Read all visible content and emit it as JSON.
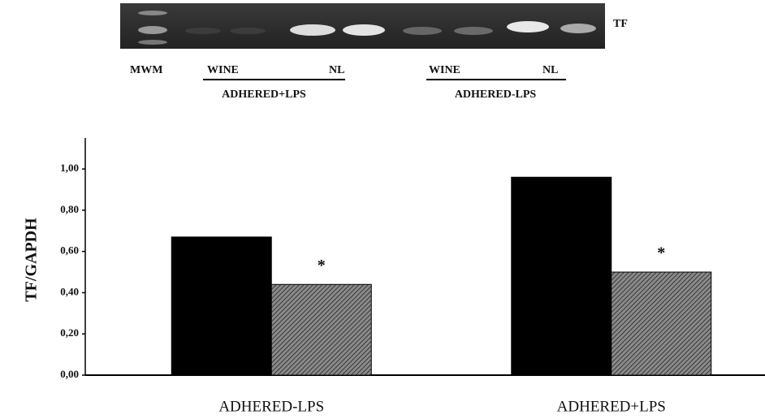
{
  "gel": {
    "marker": "TF",
    "lanes": [
      {
        "label": "MWM"
      }
    ],
    "groups": [
      {
        "labels": [
          "WINE",
          "NL"
        ],
        "title": "ADHERED+LPS"
      },
      {
        "labels": [
          "WINE",
          "NL"
        ],
        "title": "ADHERED-LPS"
      }
    ]
  },
  "chart_data": {
    "type": "bar",
    "y_label": "TF/GAPDH",
    "categories": [
      "ADHERED-LPS",
      "ADHERED+LPS"
    ],
    "series": [
      {
        "color": "#000000",
        "values": [
          0.67,
          0.96
        ]
      },
      {
        "color": "#8a8a8a",
        "hatch": true,
        "values": [
          0.44,
          0.5
        ]
      }
    ],
    "annotations": [
      "*",
      "*"
    ],
    "ylim": [
      0,
      1.15
    ],
    "yticks": [
      {
        "value": 0,
        "label": "0,00"
      },
      {
        "value": 0.2,
        "label": "0,20"
      },
      {
        "value": 0.4,
        "label": "0,40"
      },
      {
        "value": 0.6,
        "label": "0,60"
      },
      {
        "value": 0.8,
        "label": "0,80"
      },
      {
        "value": 1,
        "label": "1,00"
      }
    ]
  }
}
